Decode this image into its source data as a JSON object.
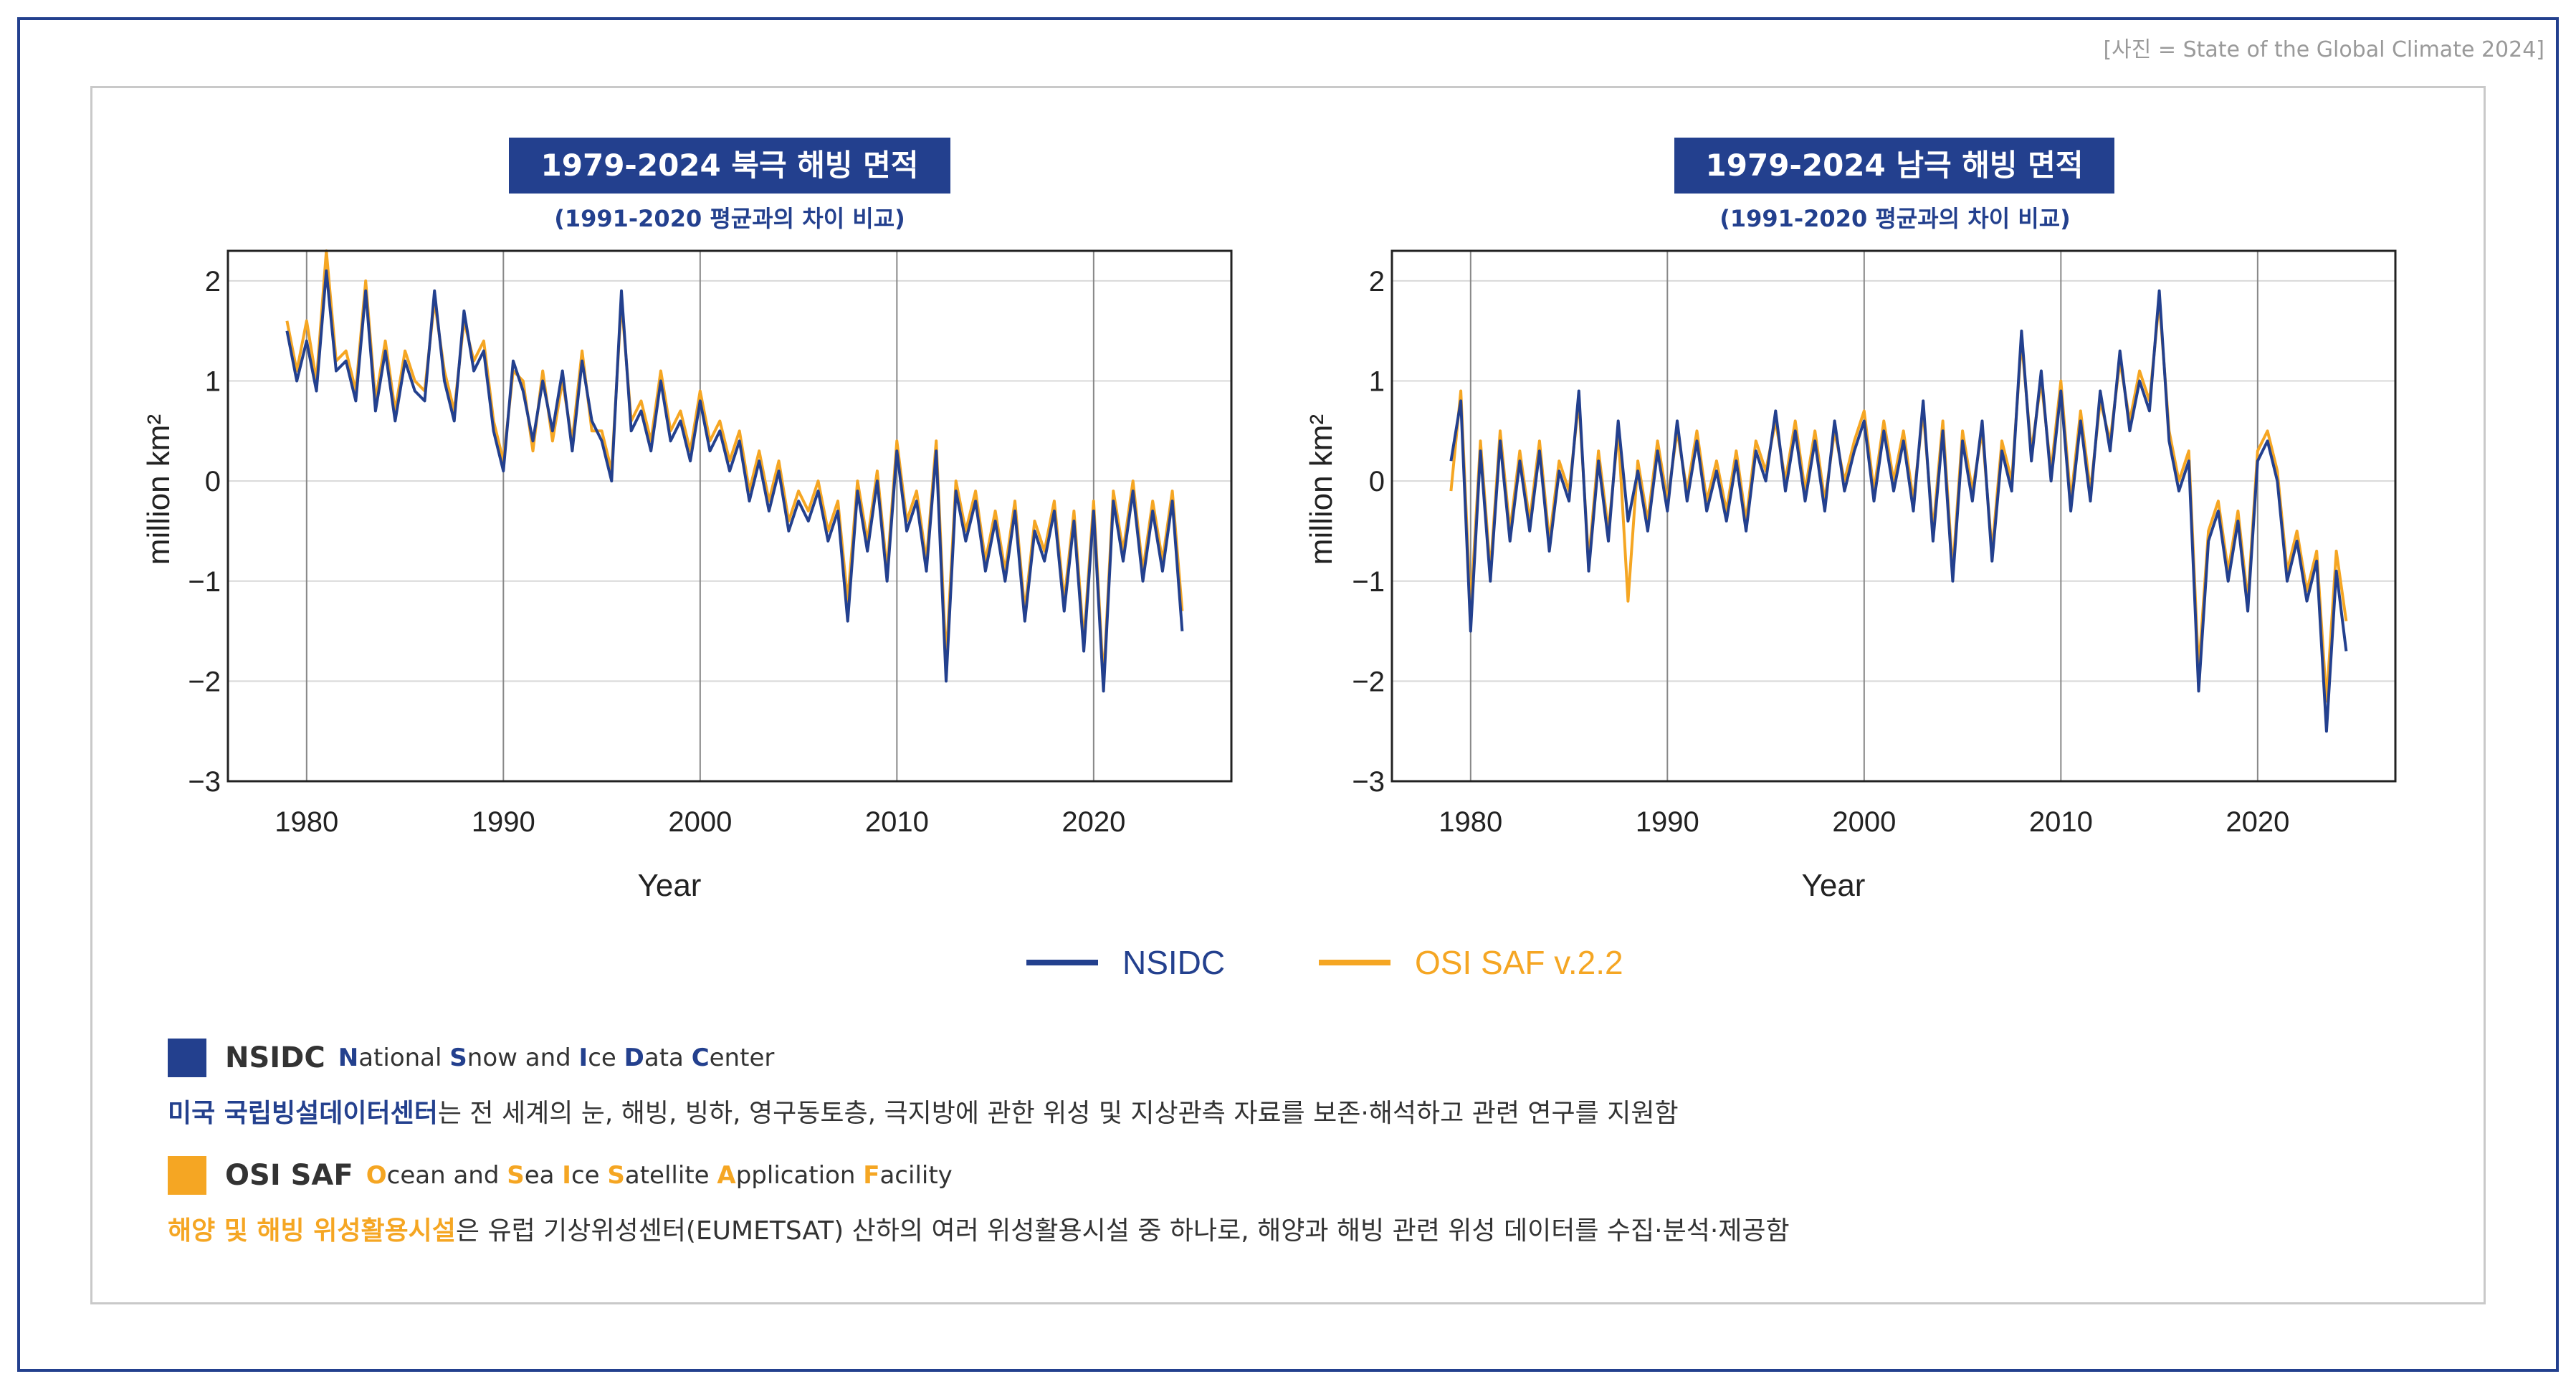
{
  "credit": "[사진 = State of the Global Climate 2024]",
  "colors": {
    "nsidc": "#23408e",
    "osisaf": "#f5a623",
    "frame": "#23408e"
  },
  "legend": {
    "nsidc": "NSIDC",
    "osisaf": "OSI SAF v.2.2"
  },
  "descriptions": {
    "nsidc": {
      "abbr": "NSIDC",
      "full_words": [
        {
          "initial": "N",
          "rest": "ational"
        },
        {
          "initial": "S",
          "rest": "now"
        },
        {
          "initial": "",
          "rest": "and"
        },
        {
          "initial": "I",
          "rest": "ce"
        },
        {
          "initial": "D",
          "rest": "ata"
        },
        {
          "initial": "C",
          "rest": "enter"
        }
      ],
      "highlight": "미국 국립빙설데이터센터",
      "text": "는 전 세계의 눈, 해빙, 빙하, 영구동토층, 극지방에 관한 위성 및 지상관측 자료를 보존·해석하고 관련 연구를 지원함"
    },
    "osisaf": {
      "abbr": "OSI SAF",
      "full_words": [
        {
          "initial": "O",
          "rest": "cean"
        },
        {
          "initial": "",
          "rest": "and"
        },
        {
          "initial": "S",
          "rest": "ea"
        },
        {
          "initial": "I",
          "rest": "ce"
        },
        {
          "initial": "S",
          "rest": "atellite"
        },
        {
          "initial": "A",
          "rest": "pplication"
        },
        {
          "initial": "F",
          "rest": "acility"
        }
      ],
      "highlight": "해양 및 해빙 위성활용시설",
      "text": "은 유럽 기상위성센터(EUMETSAT) 산하의 여러 위성활용시설 중 하나로, 해양과 해빙 관련 위성 데이터를 수집·분석·제공함"
    }
  },
  "chart_data": [
    {
      "type": "line",
      "title": "1979-2024 북극 해빙 면적",
      "subtitle": "(1991-2020 평균과의 차이 비교)",
      "xlabel": "Year",
      "ylabel": "million km²",
      "xlim": [
        1976,
        2027
      ],
      "ylim": [
        -3,
        2.3
      ],
      "xticks": [
        1980,
        1990,
        2000,
        2010,
        2020
      ],
      "yticks": [
        2,
        1,
        0,
        -1,
        -2,
        -3
      ],
      "ytick_labels": [
        "2",
        "1",
        "0",
        "−1",
        "−2",
        "−3"
      ],
      "grid": true,
      "series": [
        {
          "name": "NSIDC",
          "color": "#23408e",
          "x": [
            1979,
            1979.5,
            1980,
            1980.5,
            1981,
            1981.5,
            1982,
            1982.5,
            1983,
            1983.5,
            1984,
            1984.5,
            1985,
            1985.5,
            1986,
            1986.5,
            1987,
            1987.5,
            1988,
            1988.5,
            1989,
            1989.5,
            1990,
            1990.5,
            1991,
            1991.5,
            1992,
            1992.5,
            1993,
            1993.5,
            1994,
            1994.5,
            1995,
            1995.5,
            1996,
            1996.5,
            1997,
            1997.5,
            1998,
            1998.5,
            1999,
            1999.5,
            2000,
            2000.5,
            2001,
            2001.5,
            2002,
            2002.5,
            2003,
            2003.5,
            2004,
            2004.5,
            2005,
            2005.5,
            2006,
            2006.5,
            2007,
            2007.5,
            2008,
            2008.5,
            2009,
            2009.5,
            2010,
            2010.5,
            2011,
            2011.5,
            2012,
            2012.5,
            2013,
            2013.5,
            2014,
            2014.5,
            2015,
            2015.5,
            2016,
            2016.5,
            2017,
            2017.5,
            2018,
            2018.5,
            2019,
            2019.5,
            2020,
            2020.5,
            2021,
            2021.5,
            2022,
            2022.5,
            2023,
            2023.5,
            2024,
            2024.5
          ],
          "y": [
            1.5,
            1.0,
            1.4,
            0.9,
            2.1,
            1.1,
            1.2,
            0.8,
            1.9,
            0.7,
            1.3,
            0.6,
            1.2,
            0.9,
            0.8,
            1.9,
            1.0,
            0.6,
            1.7,
            1.1,
            1.3,
            0.5,
            0.1,
            1.2,
            0.9,
            0.4,
            1.0,
            0.5,
            1.1,
            0.3,
            1.2,
            0.6,
            0.4,
            0.0,
            1.9,
            0.5,
            0.7,
            0.3,
            1.0,
            0.4,
            0.6,
            0.2,
            0.8,
            0.3,
            0.5,
            0.1,
            0.4,
            -0.2,
            0.2,
            -0.3,
            0.1,
            -0.5,
            -0.2,
            -0.4,
            -0.1,
            -0.6,
            -0.3,
            -1.4,
            -0.1,
            -0.7,
            0.0,
            -1.0,
            0.3,
            -0.5,
            -0.2,
            -0.9,
            0.3,
            -2.0,
            -0.1,
            -0.6,
            -0.2,
            -0.9,
            -0.4,
            -1.0,
            -0.3,
            -1.4,
            -0.5,
            -0.8,
            -0.3,
            -1.3,
            -0.4,
            -1.7,
            -0.3,
            -2.1,
            -0.2,
            -0.8,
            -0.1,
            -1.0,
            -0.3,
            -0.9,
            -0.2,
            -1.5
          ]
        },
        {
          "name": "OSI SAF v.2.2",
          "color": "#f5a623",
          "x": [
            1979,
            1979.5,
            1980,
            1980.5,
            1981,
            1981.5,
            1982,
            1982.5,
            1983,
            1983.5,
            1984,
            1984.5,
            1985,
            1985.5,
            1986,
            1986.5,
            1987,
            1987.5,
            1988,
            1988.5,
            1989,
            1989.5,
            1990,
            1990.5,
            1991,
            1991.5,
            1992,
            1992.5,
            1993,
            1993.5,
            1994,
            1994.5,
            1995,
            1995.5,
            1996,
            1996.5,
            1997,
            1997.5,
            1998,
            1998.5,
            1999,
            1999.5,
            2000,
            2000.5,
            2001,
            2001.5,
            2002,
            2002.5,
            2003,
            2003.5,
            2004,
            2004.5,
            2005,
            2005.5,
            2006,
            2006.5,
            2007,
            2007.5,
            2008,
            2008.5,
            2009,
            2009.5,
            2010,
            2010.5,
            2011,
            2011.5,
            2012,
            2012.5,
            2013,
            2013.5,
            2014,
            2014.5,
            2015,
            2015.5,
            2016,
            2016.5,
            2017,
            2017.5,
            2018,
            2018.5,
            2019,
            2019.5,
            2020,
            2020.5,
            2021,
            2021.5,
            2022,
            2022.5,
            2023,
            2023.5,
            2024,
            2024.5
          ],
          "y": [
            1.6,
            1.1,
            1.6,
            1.0,
            2.3,
            1.2,
            1.3,
            0.9,
            2.0,
            0.8,
            1.4,
            0.7,
            1.3,
            1.0,
            0.9,
            1.8,
            1.1,
            0.7,
            1.6,
            1.2,
            1.4,
            0.6,
            0.2,
            1.1,
            1.0,
            0.3,
            1.1,
            0.4,
            1.0,
            0.4,
            1.3,
            0.5,
            0.5,
            0.1,
            1.8,
            0.6,
            0.8,
            0.4,
            1.1,
            0.5,
            0.7,
            0.3,
            0.9,
            0.4,
            0.6,
            0.2,
            0.5,
            -0.1,
            0.3,
            -0.2,
            0.2,
            -0.4,
            -0.1,
            -0.3,
            0.0,
            -0.5,
            -0.2,
            -1.2,
            0.0,
            -0.6,
            0.1,
            -0.9,
            0.4,
            -0.4,
            -0.1,
            -0.8,
            0.4,
            -1.8,
            0.0,
            -0.5,
            -0.1,
            -0.8,
            -0.3,
            -0.9,
            -0.2,
            -1.3,
            -0.4,
            -0.7,
            -0.2,
            -1.2,
            -0.3,
            -1.6,
            -0.2,
            -2.0,
            -0.1,
            -0.7,
            0.0,
            -0.9,
            -0.2,
            -0.8,
            -0.1,
            -1.3
          ]
        }
      ]
    },
    {
      "type": "line",
      "title": "1979-2024 남극 해빙 면적",
      "subtitle": "(1991-2020 평균과의 차이 비교)",
      "xlabel": "Year",
      "ylabel": "million km²",
      "xlim": [
        1976,
        2027
      ],
      "ylim": [
        -3,
        2.3
      ],
      "xticks": [
        1980,
        1990,
        2000,
        2010,
        2020
      ],
      "yticks": [
        2,
        1,
        0,
        -1,
        -2,
        -3
      ],
      "ytick_labels": [
        "2",
        "1",
        "0",
        "−1",
        "−2",
        "−3"
      ],
      "grid": true,
      "series": [
        {
          "name": "NSIDC",
          "color": "#23408e",
          "x": [
            1979,
            1979.5,
            1980,
            1980.5,
            1981,
            1981.5,
            1982,
            1982.5,
            1983,
            1983.5,
            1984,
            1984.5,
            1985,
            1985.5,
            1986,
            1986.5,
            1987,
            1987.5,
            1988,
            1988.5,
            1989,
            1989.5,
            1990,
            1990.5,
            1991,
            1991.5,
            1992,
            1992.5,
            1993,
            1993.5,
            1994,
            1994.5,
            1995,
            1995.5,
            1996,
            1996.5,
            1997,
            1997.5,
            1998,
            1998.5,
            1999,
            1999.5,
            2000,
            2000.5,
            2001,
            2001.5,
            2002,
            2002.5,
            2003,
            2003.5,
            2004,
            2004.5,
            2005,
            2005.5,
            2006,
            2006.5,
            2007,
            2007.5,
            2008,
            2008.5,
            2009,
            2009.5,
            2010,
            2010.5,
            2011,
            2011.5,
            2012,
            2012.5,
            2013,
            2013.5,
            2014,
            2014.5,
            2015,
            2015.5,
            2016,
            2016.5,
            2017,
            2017.5,
            2018,
            2018.5,
            2019,
            2019.5,
            2020,
            2020.5,
            2021,
            2021.5,
            2022,
            2022.5,
            2023,
            2023.5,
            2024,
            2024.5
          ],
          "y": [
            0.2,
            0.8,
            -1.5,
            0.3,
            -1.0,
            0.4,
            -0.6,
            0.2,
            -0.5,
            0.3,
            -0.7,
            0.1,
            -0.2,
            0.9,
            -0.9,
            0.2,
            -0.6,
            0.6,
            -0.4,
            0.1,
            -0.5,
            0.3,
            -0.3,
            0.6,
            -0.2,
            0.4,
            -0.3,
            0.1,
            -0.4,
            0.2,
            -0.5,
            0.3,
            0.0,
            0.7,
            -0.1,
            0.5,
            -0.2,
            0.4,
            -0.3,
            0.6,
            -0.1,
            0.3,
            0.6,
            -0.2,
            0.5,
            -0.1,
            0.4,
            -0.3,
            0.8,
            -0.6,
            0.5,
            -1.0,
            0.4,
            -0.2,
            0.6,
            -0.8,
            0.3,
            -0.1,
            1.5,
            0.2,
            1.1,
            0.0,
            0.9,
            -0.3,
            0.6,
            -0.2,
            0.9,
            0.3,
            1.3,
            0.5,
            1.0,
            0.7,
            1.9,
            0.4,
            -0.1,
            0.2,
            -2.1,
            -0.6,
            -0.3,
            -1.0,
            -0.4,
            -1.3,
            0.2,
            0.4,
            0.0,
            -1.0,
            -0.6,
            -1.2,
            -0.8,
            -2.5,
            -0.9,
            -1.7
          ]
        },
        {
          "name": "OSI SAF v.2.2",
          "color": "#f5a623",
          "x": [
            1979,
            1979.5,
            1980,
            1980.5,
            1981,
            1981.5,
            1982,
            1982.5,
            1983,
            1983.5,
            1984,
            1984.5,
            1985,
            1985.5,
            1986,
            1986.5,
            1987,
            1987.5,
            1988,
            1988.5,
            1989,
            1989.5,
            1990,
            1990.5,
            1991,
            1991.5,
            1992,
            1992.5,
            1993,
            1993.5,
            1994,
            1994.5,
            1995,
            1995.5,
            1996,
            1996.5,
            1997,
            1997.5,
            1998,
            1998.5,
            1999,
            1999.5,
            2000,
            2000.5,
            2001,
            2001.5,
            2002,
            2002.5,
            2003,
            2003.5,
            2004,
            2004.5,
            2005,
            2005.5,
            2006,
            2006.5,
            2007,
            2007.5,
            2008,
            2008.5,
            2009,
            2009.5,
            2010,
            2010.5,
            2011,
            2011.5,
            2012,
            2012.5,
            2013,
            2013.5,
            2014,
            2014.5,
            2015,
            2015.5,
            2016,
            2016.5,
            2017,
            2017.5,
            2018,
            2018.5,
            2019,
            2019.5,
            2020,
            2020.5,
            2021,
            2021.5,
            2022,
            2022.5,
            2023,
            2023.5,
            2024,
            2024.5
          ],
          "y": [
            -0.1,
            0.9,
            -1.3,
            0.4,
            -0.9,
            0.5,
            -0.5,
            0.3,
            -0.4,
            0.4,
            -0.6,
            0.2,
            -0.1,
            0.8,
            -0.8,
            0.3,
            -0.5,
            0.5,
            -1.2,
            0.2,
            -0.4,
            0.4,
            -0.2,
            0.5,
            -0.1,
            0.5,
            -0.2,
            0.2,
            -0.3,
            0.3,
            -0.4,
            0.4,
            0.1,
            0.6,
            0.0,
            0.6,
            -0.1,
            0.5,
            -0.2,
            0.5,
            0.0,
            0.4,
            0.7,
            -0.1,
            0.6,
            0.0,
            0.5,
            -0.2,
            0.7,
            -0.5,
            0.6,
            -0.9,
            0.5,
            -0.1,
            0.5,
            -0.7,
            0.4,
            0.0,
            1.4,
            0.3,
            1.0,
            0.1,
            1.0,
            -0.2,
            0.7,
            -0.1,
            0.8,
            0.4,
            1.2,
            0.6,
            1.1,
            0.8,
            1.8,
            0.5,
            0.0,
            0.3,
            -1.9,
            -0.5,
            -0.2,
            -0.9,
            -0.3,
            -1.2,
            0.3,
            0.5,
            0.1,
            -0.9,
            -0.5,
            -1.1,
            -0.7,
            -2.2,
            -0.7,
            -1.4
          ]
        }
      ]
    }
  ]
}
